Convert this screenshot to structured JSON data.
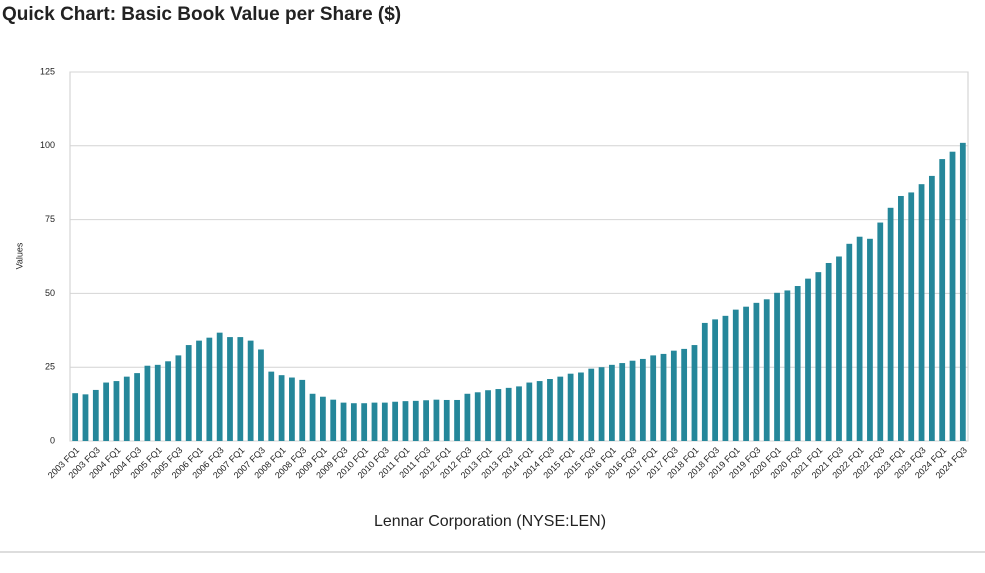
{
  "chart_data": {
    "type": "bar",
    "title": "Quick Chart: Basic Book Value per Share ($)",
    "ylabel": "Values",
    "xlabel": "Lennar Corporation (NYSE:LEN)",
    "color": "#25879a",
    "grid": true,
    "ylim": [
      0,
      125
    ],
    "yticks": [
      0,
      25,
      50,
      75,
      100,
      125
    ],
    "categories": [
      "2003 FQ1",
      null,
      "2003 FQ3",
      null,
      "2004 FQ1",
      null,
      "2004 FQ3",
      null,
      "2005 FQ1",
      null,
      "2005 FQ3",
      null,
      "2006 FQ1",
      null,
      "2006 FQ3",
      null,
      "2007 FQ1",
      null,
      "2007 FQ3",
      null,
      "2008 FQ1",
      null,
      "2008 FQ3",
      null,
      "2009 FQ1",
      null,
      "2009 FQ3",
      null,
      "2010 FQ1",
      null,
      "2010 FQ3",
      null,
      "2011 FQ1",
      null,
      "2011 FQ3",
      null,
      "2012 FQ1",
      null,
      "2012 FQ3",
      null,
      "2013 FQ1",
      null,
      "2013 FQ3",
      null,
      "2014 FQ1",
      null,
      "2014 FQ3",
      null,
      "2015 FQ1",
      null,
      "2015 FQ3",
      null,
      "2016 FQ1",
      null,
      "2016 FQ3",
      null,
      "2017 FQ1",
      null,
      "2017 FQ3",
      null,
      "2018 FQ1",
      null,
      "2018 FQ3",
      null,
      "2019 FQ1",
      null,
      "2019 FQ3",
      null,
      "2020 FQ1",
      null,
      "2020 FQ3",
      null,
      "2021 FQ1",
      null,
      "2021 FQ3",
      null,
      "2022 FQ1",
      null,
      "2022 FQ3",
      null,
      "2023 FQ1",
      null,
      "2023 FQ3",
      null,
      "2024 FQ1",
      null,
      "2024 FQ3"
    ],
    "values": [
      16.2,
      15.8,
      17.3,
      19.8,
      20.3,
      21.8,
      23,
      25.5,
      25.8,
      27,
      29,
      32.5,
      34,
      35,
      36.7,
      35.2,
      35.2,
      34,
      31,
      23.5,
      22.3,
      21.5,
      20.7,
      16,
      15,
      14,
      13,
      12.8,
      12.8,
      13,
      13,
      13.3,
      13.5,
      13.6,
      13.8,
      14,
      13.9,
      13.9,
      16,
      16.5,
      17.2,
      17.6,
      18,
      18.5,
      19.8,
      20.3,
      21,
      21.8,
      22.8,
      23.2,
      24.5,
      25,
      25.8,
      26.4,
      27.2,
      27.8,
      29,
      29.5,
      30.6,
      31.2,
      32.5,
      40,
      41.2,
      42.4,
      44.5,
      45.5,
      46.8,
      48,
      50.2,
      51,
      52.5,
      55,
      57.2,
      60.3,
      62.5,
      66.8,
      69.2,
      68.5,
      74,
      79,
      83,
      84.2,
      87,
      89.8,
      95.5,
      98,
      101
    ]
  }
}
